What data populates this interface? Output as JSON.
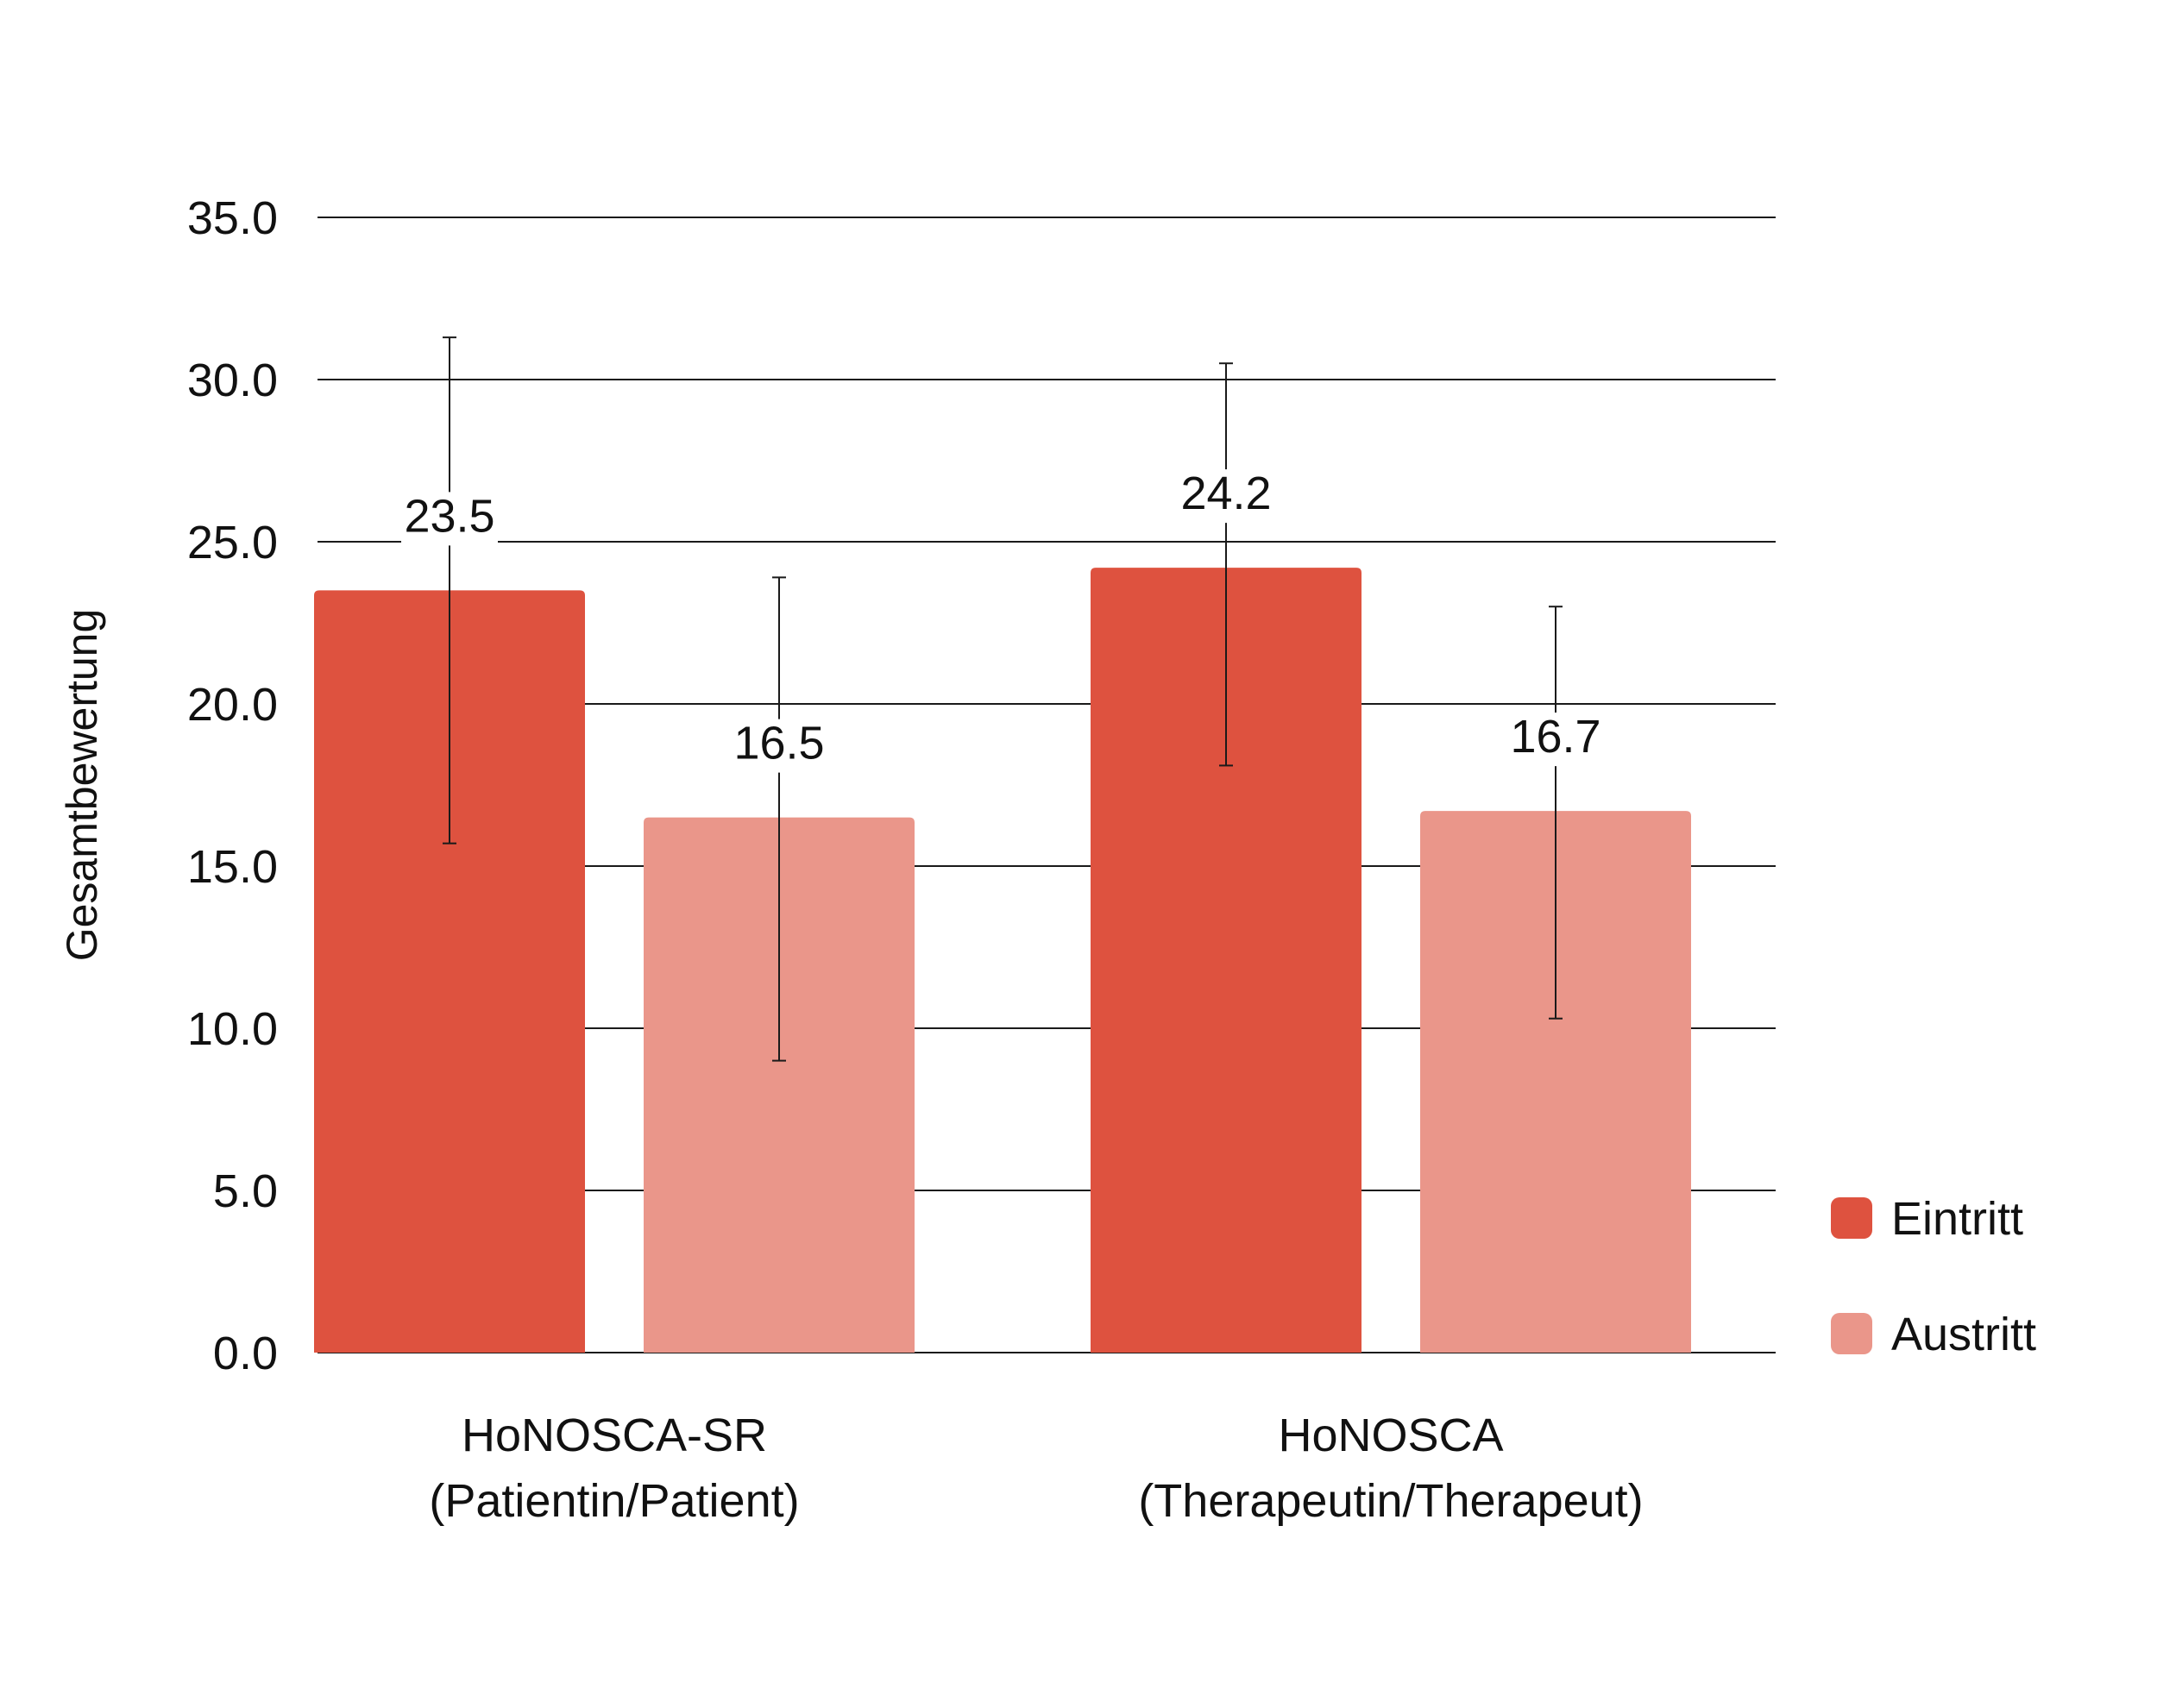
{
  "chart_data": {
    "type": "bar",
    "title": "",
    "xlabel": "",
    "ylabel": "Gesamtbewertung",
    "ylim": [
      0,
      35
    ],
    "yticks": [
      "0.0",
      "5.0",
      "10.0",
      "15.0",
      "20.0",
      "25.0",
      "30.0",
      "35.0"
    ],
    "grid": true,
    "legend_position": "bottom-right",
    "categories": [
      [
        "HoNOSCA-SR",
        "(Patientin/Patient)"
      ],
      [
        "HoNOSCA",
        "(Therapeutin/Therapeut)"
      ]
    ],
    "series": [
      {
        "name": "Eintritt",
        "color": "#DE523F",
        "values": [
          23.5,
          24.2
        ],
        "labels": [
          "23.5",
          "24.2"
        ],
        "error_low": [
          15.7,
          18.1
        ],
        "error_high": [
          31.3,
          30.5
        ]
      },
      {
        "name": "Austritt",
        "color": "#EA968A",
        "values": [
          16.5,
          16.7
        ],
        "labels": [
          "16.5",
          "16.7"
        ],
        "error_low": [
          9.0,
          10.3
        ],
        "error_high": [
          23.9,
          23.0
        ]
      }
    ]
  }
}
